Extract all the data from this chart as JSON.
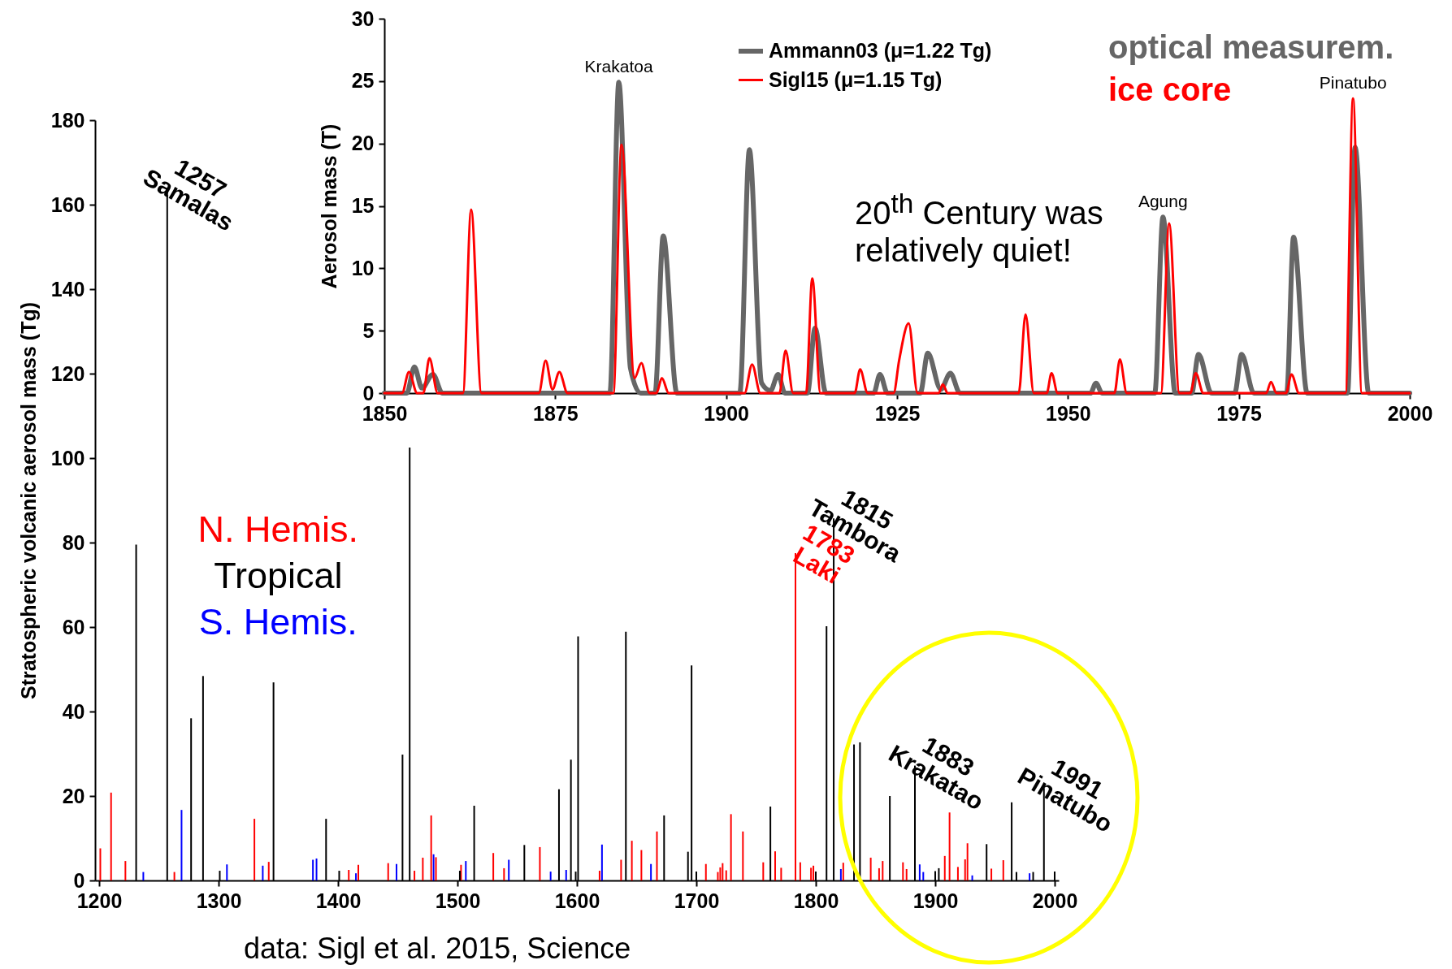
{
  "chart_data": [
    {
      "type": "bar",
      "ylabel": "Stratospheric volcanic aerosol mass (Tg)",
      "xlim": [
        1200,
        2000
      ],
      "xticks": [
        1200,
        1300,
        1400,
        1500,
        1600,
        1700,
        1800,
        1900,
        2000
      ],
      "ylim": [
        0,
        180
      ],
      "yticks": [
        0,
        20,
        40,
        60,
        80,
        100,
        120,
        140,
        160,
        180
      ],
      "legend": "left",
      "series": [
        {
          "name": "N. Hemis.",
          "color": "#ff0000",
          "x": [
            1201,
            1210,
            1222,
            1263,
            1330,
            1342,
            1409,
            1417,
            1442,
            1464,
            1471,
            1478,
            1482,
            1503,
            1530,
            1539,
            1569,
            1619,
            1637,
            1646,
            1654,
            1667,
            1708,
            1718,
            1720,
            1722,
            1725,
            1729,
            1739,
            1756,
            1766,
            1771,
            1783,
            1787,
            1796,
            1798,
            1823,
            1846,
            1853,
            1856,
            1873,
            1876,
            1908,
            1912,
            1919,
            1925,
            1927,
            1947,
            1957
          ],
          "values": [
            7.6,
            20.8,
            4.6,
            2.0,
            14.6,
            4.4,
            2.5,
            3.7,
            4.1,
            2.3,
            5.4,
            15.4,
            5.5,
            3.7,
            6.5,
            2.9,
            7.9,
            2.3,
            4.9,
            9.4,
            7.2,
            11.6,
            3.9,
            2.0,
            3.1,
            4.1,
            2.4,
            15.7,
            11.6,
            4.3,
            6.9,
            3.0,
            77.5,
            4.3,
            3.0,
            3.5,
            4.2,
            5.4,
            2.9,
            4.6,
            4.3,
            2.7,
            5.8,
            16.1,
            3.2,
            5.0,
            8.8,
            2.8,
            4.8
          ]
        },
        {
          "name": "Tropical",
          "color": "#000000",
          "x": [
            1231,
            1257,
            1277,
            1287,
            1301,
            1346,
            1390,
            1401,
            1454,
            1460,
            1502,
            1514,
            1556,
            1585,
            1595,
            1599,
            1601,
            1641,
            1673,
            1693,
            1696,
            1700,
            1762,
            1800,
            1809,
            1815,
            1832,
            1837,
            1862,
            1883,
            1900,
            1903,
            1943,
            1964,
            1968,
            1982,
            1991,
            2000
          ],
          "values": [
            79.5,
            164,
            38.4,
            48.4,
            2.3,
            46.9,
            14.6,
            2.3,
            29.8,
            102.5,
            2.3,
            17.7,
            8.4,
            21.6,
            28.6,
            2.1,
            57.8,
            58.9,
            15.4,
            6.8,
            50.9,
            2.1,
            17.5,
            2.1,
            60.2,
            85.7,
            32.2,
            32.7,
            20.0,
            27.2,
            2.2,
            2.9,
            8.6,
            18.5,
            2.0,
            2.0,
            21.9,
            2.1
          ]
        },
        {
          "name": "S. Hemis.",
          "color": "#0000ff",
          "x": [
            1237,
            1269,
            1307,
            1337,
            1379,
            1382,
            1415,
            1449,
            1480,
            1507,
            1543,
            1578,
            1591,
            1621,
            1662,
            1821,
            1887,
            1890,
            1931,
            1979
          ],
          "values": [
            2.0,
            16.7,
            3.8,
            3.5,
            4.9,
            5.2,
            1.7,
            3.9,
            6.2,
            4.6,
            4.9,
            2.1,
            2.5,
            8.5,
            3.9,
            2.7,
            3.8,
            2.0,
            1.2,
            1.7
          ]
        }
      ],
      "annotations": [
        {
          "text": "1257\nSamalas",
          "x": 1257,
          "y": 164
        },
        {
          "text": "1815\nTambora",
          "x": 1815,
          "y": 85.7
        },
        {
          "text": "1783\nLaki",
          "x": 1783,
          "y": 77.5
        },
        {
          "text": "1883\nKrakatao",
          "x": 1883,
          "y": 27.2
        },
        {
          "text": "1991\nPinatubo",
          "x": 1991,
          "y": 21.9
        },
        "data: Sigl et al. 2015, Science"
      ]
    },
    {
      "type": "line",
      "ylabel": "Aerosol mass (T)",
      "xlim": [
        1850,
        2000
      ],
      "xticks": [
        1850,
        1875,
        1900,
        1925,
        1950,
        1975,
        2000
      ],
      "ylim": [
        0,
        30
      ],
      "yticks": [
        0,
        5,
        10,
        15,
        20,
        25,
        30
      ],
      "legend": "top right",
      "series": [
        {
          "name": "Ammann03 (μ=1.22 Tg)",
          "color": "#666666",
          "x": [
            1850,
            1853.3,
            1854.4,
            1855.5,
            1857.1,
            1858.5,
            1883,
            1884.3,
            1886,
            1887.5,
            1889.6,
            1890.8,
            1892.8,
            1902,
            1903.4,
            1905.2,
            1906.5,
            1907.6,
            1908.6,
            1911.9,
            1913,
            1914.6,
            1921.6,
            1922.5,
            1923.6,
            1928.4,
            1929.5,
            1931.4,
            1932.8,
            1934.2,
            1953.3,
            1954.1,
            1955,
            1962.7,
            1963.9,
            1965.7,
            1968.1,
            1969.1,
            1971,
            1974.4,
            1975.4,
            1977.2,
            1982,
            1983,
            1985,
            1990.9,
            1992,
            1994,
            2000
          ],
          "values": [
            0,
            0,
            2.1,
            0.4,
            1.5,
            0,
            0,
            24.9,
            2,
            0,
            0,
            12.6,
            0,
            0,
            19.5,
            0.8,
            0.2,
            1.5,
            0,
            0,
            5.2,
            0,
            0,
            1.5,
            0,
            0,
            3.2,
            0.3,
            1.6,
            0,
            0,
            0.8,
            0,
            0,
            14.1,
            0,
            0,
            3.1,
            0,
            0,
            3.1,
            0,
            0,
            12.5,
            0,
            0,
            19.7,
            0,
            0
          ]
        },
        {
          "name": "Sigl15 (μ=1.15 Tg)",
          "color": "#ff0000",
          "x": [
            1850,
            1852.6,
            1853.6,
            1854.8,
            1855.7,
            1856.6,
            1857.8,
            1861.5,
            1862.7,
            1864.2,
            1872.6,
            1873.6,
            1874.6,
            1875.6,
            1876.8,
            1883.5,
            1884.7,
            1886.6,
            1887.6,
            1888.8,
            1889.8,
            1890.6,
            1891.6,
            1902.7,
            1903.8,
            1905,
            1907.8,
            1908.7,
            1909.8,
            1911.7,
            1912.6,
            1913.8,
            1918.8,
            1919.6,
            1920.7,
            1924.5,
            1925.3,
            1926.7,
            1928,
            1931.1,
            1931.7,
            1932.4,
            1942.8,
            1943.8,
            1945,
            1946.9,
            1947.6,
            1948.5,
            1956.8,
            1957.6,
            1958.6,
            1963.6,
            1964.8,
            1966.3,
            1967.9,
            1968.7,
            1969.8,
            1979,
            1979.7,
            1980.5,
            1981.9,
            1982.7,
            1983.8,
            1990.6,
            1991.7,
            1993,
            2000
          ],
          "values": [
            0,
            0,
            1.7,
            0,
            0,
            2.8,
            0,
            0,
            14.7,
            0,
            0,
            2.6,
            0.3,
            1.7,
            0,
            0,
            19.9,
            1.2,
            2.4,
            0,
            0,
            1.2,
            0,
            0,
            2.3,
            0,
            0,
            3.4,
            0,
            0,
            9.2,
            0,
            0,
            1.9,
            0,
            0,
            2.6,
            5.6,
            0,
            0,
            0.7,
            0,
            0,
            6.3,
            0,
            0,
            1.6,
            0,
            0,
            2.7,
            0,
            0,
            13.6,
            0,
            0,
            1.6,
            0,
            0,
            0.9,
            0,
            0,
            1.5,
            0,
            0,
            23.6,
            0,
            0
          ]
        }
      ],
      "annotations": [
        {
          "text": "Krakatoa",
          "x": 1884.3,
          "y": 24.9
        },
        {
          "text": "Agung",
          "x": 1963.9,
          "y": 14.1
        },
        {
          "text": "Pinatubo",
          "x": 1991.7,
          "y": 23.6
        },
        "20$^{th}$ Century was relatively quiet!",
        "optical measurem.",
        "ice core"
      ]
    }
  ]
}
